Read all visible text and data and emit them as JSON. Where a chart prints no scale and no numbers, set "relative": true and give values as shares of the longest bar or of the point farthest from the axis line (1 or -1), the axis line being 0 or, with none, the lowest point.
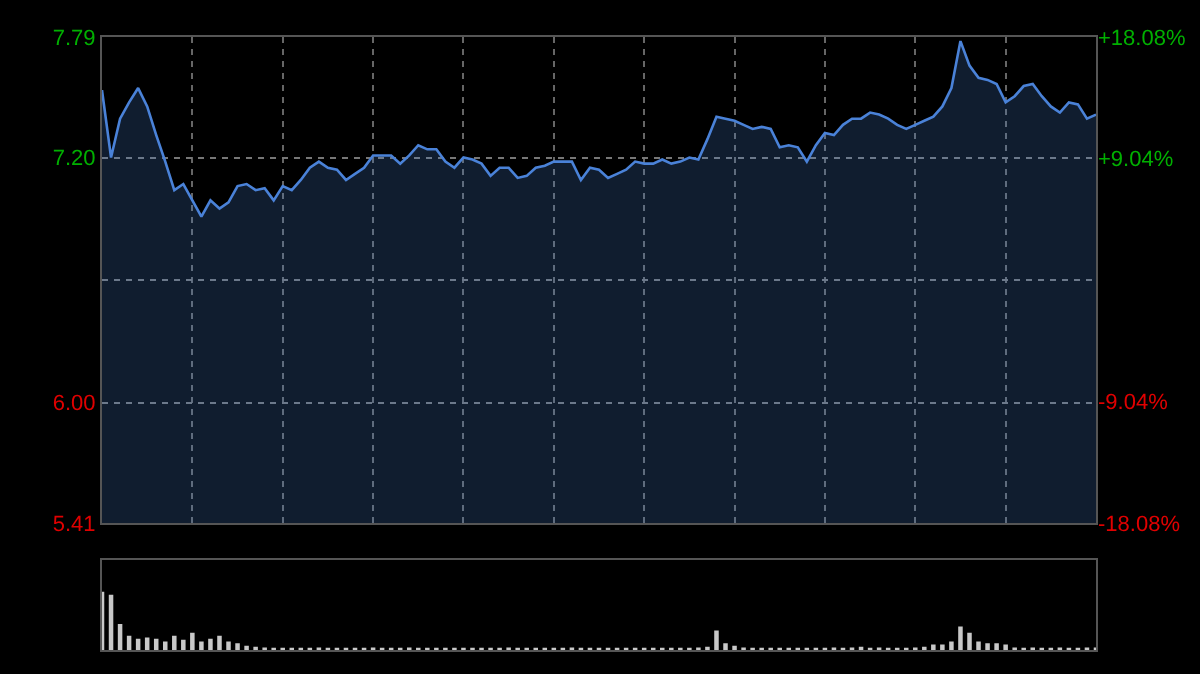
{
  "chart_data": [
    {
      "type": "area",
      "categories": [
        null,
        null,
        null,
        null,
        null,
        null,
        null,
        null,
        null,
        null,
        null,
        null,
        null,
        null,
        null,
        null,
        null,
        null,
        null,
        null,
        null,
        null,
        null,
        null,
        null,
        null,
        null,
        null,
        null,
        null,
        null,
        null,
        null,
        null,
        null,
        null,
        null,
        null,
        null,
        null,
        null,
        null,
        null,
        null,
        null,
        null,
        null,
        null,
        null,
        null,
        null,
        null,
        null,
        null,
        null,
        null,
        null,
        null,
        null,
        null,
        null,
        null,
        null,
        null,
        null,
        null,
        null,
        null,
        null,
        null,
        null,
        null,
        null,
        null,
        null,
        null,
        null,
        null,
        null,
        null,
        null,
        null,
        null,
        null,
        null,
        null,
        null,
        null,
        null,
        null,
        null,
        null,
        null,
        null,
        null,
        null,
        null,
        null,
        null,
        null,
        null,
        null,
        null,
        null,
        null,
        null,
        null,
        null,
        null,
        null,
        null
      ],
      "series": [
        {
          "color": "#4a82d8",
          "values": [
            7.53,
            7.2,
            7.39,
            7.47,
            7.54,
            7.45,
            7.31,
            7.18,
            7.04,
            7.07,
            6.99,
            6.91,
            6.99,
            6.95,
            6.98,
            7.06,
            7.07,
            7.04,
            7.05,
            6.99,
            7.06,
            7.04,
            7.09,
            7.15,
            7.18,
            7.15,
            7.14,
            7.09,
            7.12,
            7.15,
            7.21,
            7.21,
            7.21,
            7.17,
            7.21,
            7.26,
            7.24,
            7.24,
            7.18,
            7.15,
            7.2,
            7.19,
            7.17,
            7.11,
            7.15,
            7.15,
            7.1,
            7.11,
            7.15,
            7.16,
            7.18,
            7.18,
            7.18,
            7.09,
            7.15,
            7.14,
            7.1,
            7.12,
            7.14,
            7.18,
            7.17,
            7.17,
            7.19,
            7.17,
            7.18,
            7.2,
            7.19,
            7.29,
            7.4,
            7.39,
            7.38,
            7.36,
            7.34,
            7.35,
            7.34,
            7.25,
            7.26,
            7.25,
            7.18,
            7.26,
            7.32,
            7.31,
            7.36,
            7.39,
            7.39,
            7.42,
            7.41,
            7.39,
            7.36,
            7.34,
            7.36,
            7.38,
            7.4,
            7.45,
            7.54,
            7.77,
            7.65,
            7.59,
            7.58,
            7.56,
            7.47,
            7.5,
            7.55,
            7.56,
            7.5,
            7.45,
            7.42,
            7.47,
            7.46,
            7.39,
            7.41
          ]
        }
      ],
      "ylim": [
        5.41,
        7.79
      ],
      "yticks": [
        5.41,
        {
          "value": 6.0,
          "label": "6.00"
        },
        {
          "value": 6.6,
          "label": null
        },
        {
          "value": 7.2,
          "label": "7.20"
        },
        7.79
      ],
      "y2lim": [
        -18.08,
        18.08
      ],
      "y2ticks": [
        {
          "value": -18.08,
          "label": "-18.08%"
        },
        {
          "value": -9.04,
          "label": "-9.04%"
        },
        {
          "value": 0,
          "label": null
        },
        {
          "value": 9.04,
          "label": "+9.04%"
        },
        {
          "value": 18.08,
          "label": "+18.08%"
        }
      ],
      "grid": true,
      "tick_labels": "y"
    },
    {
      "type": "bar",
      "relative": true,
      "categories": [
        null,
        null,
        null,
        null,
        null,
        null,
        null,
        null,
        null,
        null,
        null,
        null,
        null,
        null,
        null,
        null,
        null,
        null,
        null,
        null,
        null,
        null,
        null,
        null,
        null,
        null,
        null,
        null,
        null,
        null,
        null,
        null,
        null,
        null,
        null,
        null,
        null,
        null,
        null,
        null,
        null,
        null,
        null,
        null,
        null,
        null,
        null,
        null,
        null,
        null,
        null,
        null,
        null,
        null,
        null,
        null,
        null,
        null,
        null,
        null,
        null,
        null,
        null,
        null,
        null,
        null,
        null,
        null,
        null,
        null,
        null,
        null,
        null,
        null,
        null,
        null,
        null,
        null,
        null,
        null,
        null,
        null,
        null,
        null,
        null,
        null,
        null,
        null,
        null,
        null,
        null,
        null,
        null,
        null,
        null,
        null,
        null,
        null,
        null,
        null,
        null,
        null,
        null,
        null,
        null,
        null,
        null,
        null,
        null,
        null,
        null
      ],
      "series": [
        {
          "color": "#c8c8c8",
          "values": [
            1,
            0.95,
            0.45,
            0.25,
            0.2,
            0.22,
            0.2,
            0.15,
            0.25,
            0.18,
            0.3,
            0.15,
            0.2,
            0.25,
            0.15,
            0.12,
            0.08,
            0.06,
            0.05,
            0.04,
            0.04,
            0.03,
            0.04,
            0.03,
            0.05,
            0.04,
            0.03,
            0.04,
            0.03,
            0.04,
            0.05,
            0.04,
            0.03,
            0.04,
            0.05,
            0.04,
            0.03,
            0.04,
            0.03,
            0.04,
            0.04,
            0.03,
            0.04,
            0.03,
            0.04,
            0.05,
            0.04,
            0.03,
            0.04,
            0.03,
            0.04,
            0.04,
            0.05,
            0.04,
            0.03,
            0.04,
            0.03,
            0.04,
            0.04,
            0.03,
            0.04,
            0.03,
            0.04,
            0.04,
            0.03,
            0.04,
            0.05,
            0.06,
            0.34,
            0.12,
            0.08,
            0.05,
            0.04,
            0.04,
            0.03,
            0.04,
            0.04,
            0.03,
            0.04,
            0.03,
            0.04,
            0.05,
            0.04,
            0.05,
            0.06,
            0.04,
            0.05,
            0.04,
            0.03,
            0.04,
            0.05,
            0.06,
            0.1,
            0.1,
            0.15,
            0.41,
            0.3,
            0.15,
            0.12,
            0.12,
            0.1,
            0.05,
            0.04,
            0.05,
            0.04,
            0.04,
            0.05,
            0.04,
            0.04,
            0.05,
            0.05
          ]
        }
      ],
      "grid": false,
      "tick_labels": false
    }
  ]
}
